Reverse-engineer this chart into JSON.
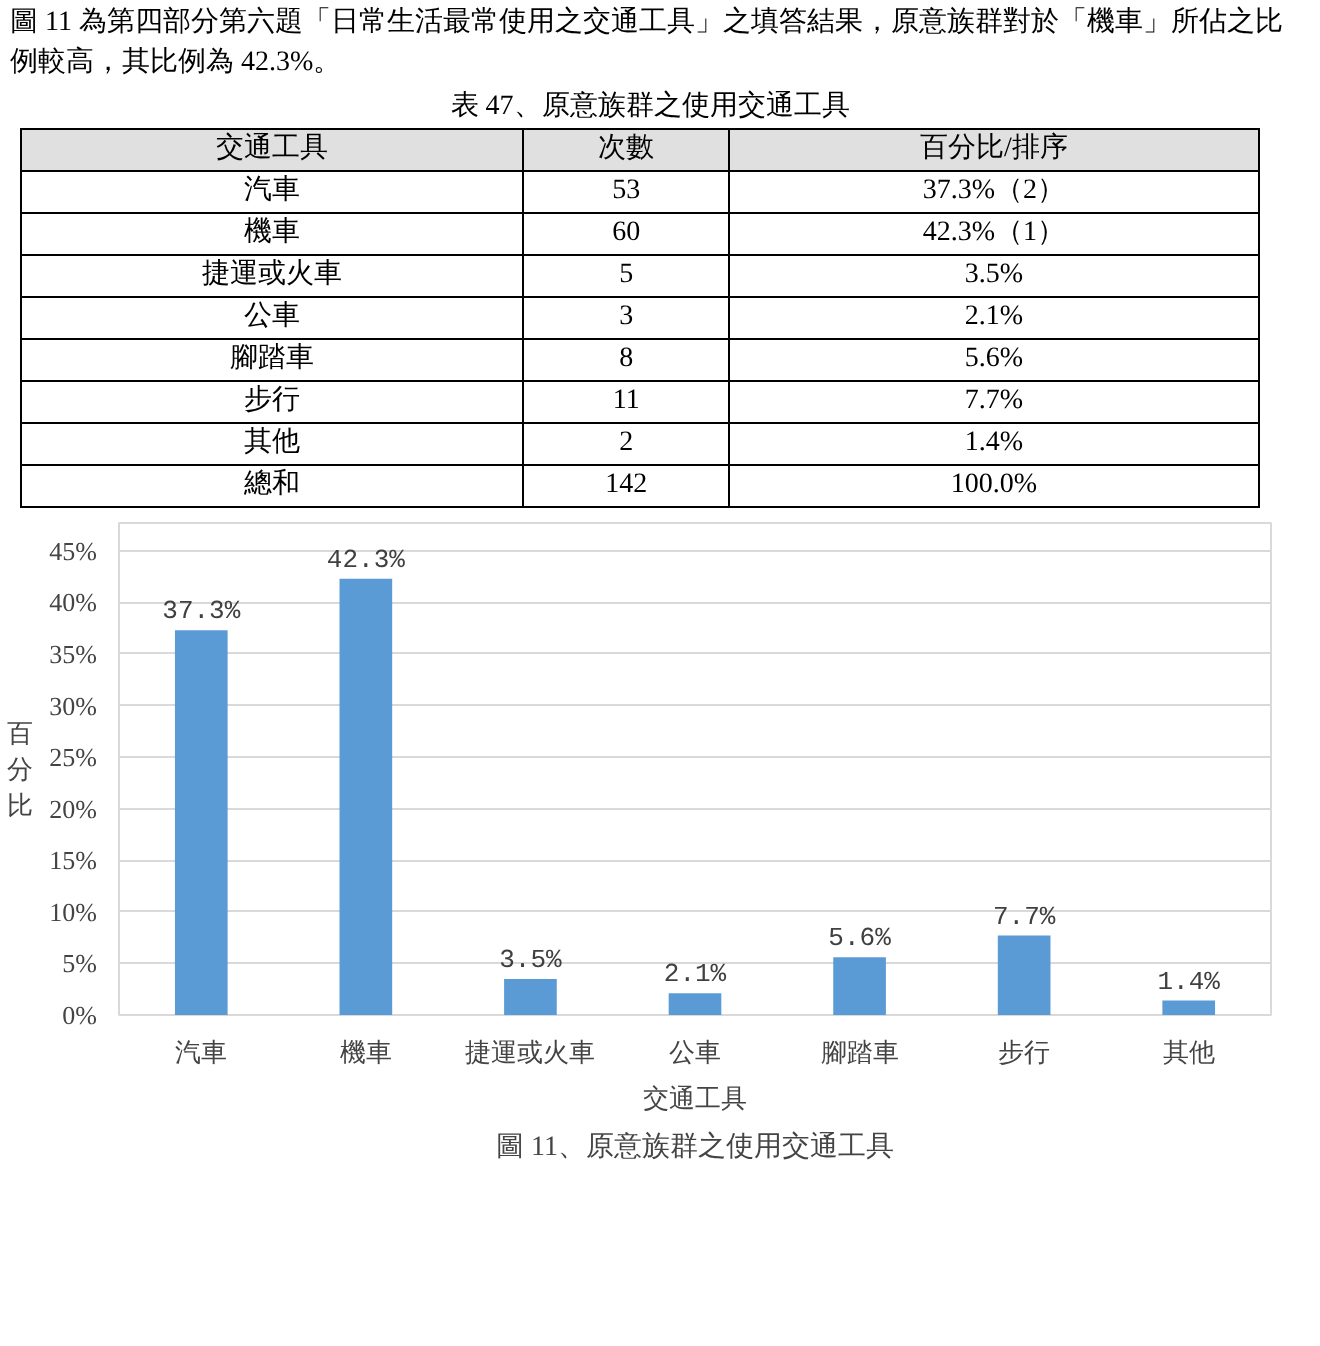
{
  "chart_data": {
    "type": "bar",
    "title": "圖 11、原意族群之使用交通工具",
    "annotations": [
      "圖 11 為第四部分第六題「日常生活最常使用之交通工具」之填答結果，原意族群對於「機車」所佔之比例較高，其比例為 42.3%。",
      "表 47、原意族群之使用交通工具",
      "交通工具",
      "次數",
      "百分比/排序",
      "汽車",
      "53",
      "37.3%（2）",
      "機車",
      "60",
      "42.3%（1）",
      "捷運或火車",
      "5",
      "3.5%",
      "公車",
      "3",
      "2.1%",
      "腳踏車",
      "8",
      "5.6%",
      "步行",
      "11",
      "7.7%",
      "其他",
      "2",
      "1.4%",
      "總和",
      "142",
      "100.0%"
    ],
    "categories": [
      "汽車",
      "機車",
      "捷運或火車",
      "公車",
      "腳踏車",
      "步行",
      "其他"
    ],
    "values": [
      37.3,
      42.3,
      3.5,
      2.1,
      5.6,
      7.7,
      1.4
    ],
    "value_labels": [
      "37.3%",
      "42.3%",
      "3.5%",
      "2.1%",
      "5.6%",
      "7.7%",
      "1.4%"
    ],
    "color": "#5b9bd5",
    "xlabel": "交通工具",
    "ylabel": "百分比",
    "ylim": [
      0,
      45
    ],
    "yticks": [
      {
        "value": 0,
        "label": "0%"
      },
      {
        "value": 5,
        "label": "5%"
      },
      {
        "value": 10,
        "label": "10%"
      },
      {
        "value": 15,
        "label": "15%"
      },
      {
        "value": 20,
        "label": "20%"
      },
      {
        "value": 25,
        "label": "25%"
      },
      {
        "value": 30,
        "label": "30%"
      },
      {
        "value": 35,
        "label": "35%"
      },
      {
        "value": 40,
        "label": "40%"
      },
      {
        "value": 45,
        "label": "45%"
      }
    ],
    "grid": "y"
  }
}
